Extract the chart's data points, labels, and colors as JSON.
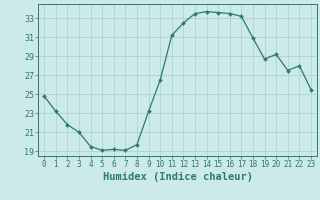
{
  "x": [
    0,
    1,
    2,
    3,
    4,
    5,
    6,
    7,
    8,
    9,
    10,
    11,
    12,
    13,
    14,
    15,
    16,
    17,
    18,
    19,
    20,
    21,
    22,
    23
  ],
  "y": [
    24.8,
    23.2,
    21.8,
    21.0,
    19.5,
    19.1,
    19.2,
    19.1,
    19.7,
    23.2,
    26.5,
    31.2,
    32.5,
    33.5,
    33.7,
    33.6,
    33.5,
    33.2,
    30.9,
    28.7,
    29.2,
    27.5,
    28.0,
    25.5
  ],
  "line_color": "#2d7a6e",
  "marker": "D",
  "marker_size": 2.0,
  "bg_color": "#cceae7",
  "grid_color": "#aad4d0",
  "tick_label_color": "#2d7a6e",
  "xlabel": "Humidex (Indice chaleur)",
  "xlabel_fontsize": 7.5,
  "yticks": [
    19,
    21,
    23,
    25,
    27,
    29,
    31,
    33
  ],
  "xticks": [
    0,
    1,
    2,
    3,
    4,
    5,
    6,
    7,
    8,
    9,
    10,
    11,
    12,
    13,
    14,
    15,
    16,
    17,
    18,
    19,
    20,
    21,
    22,
    23
  ],
  "ylim": [
    18.5,
    34.5
  ],
  "xlim": [
    -0.5,
    23.5
  ]
}
